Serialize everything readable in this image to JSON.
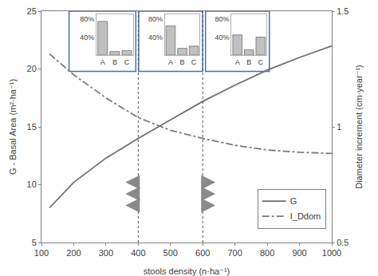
{
  "chart_data": [
    {
      "type": "line",
      "xlabel": "stools density (n·ha⁻¹)",
      "ylabel": "G - Basal Area (m²·ha⁻¹)",
      "y2label": "Diameter increment (cm·year⁻¹)",
      "x": [
        125,
        200,
        300,
        400,
        500,
        600,
        700,
        800,
        900,
        1000
      ],
      "series": [
        {
          "name": "G",
          "color": "#6e6e6e",
          "line_style": "solid",
          "values": [
            8.0,
            10.2,
            12.3,
            14.0,
            15.6,
            17.2,
            18.6,
            19.9,
            21.0,
            22.0
          ]
        },
        {
          "name": "I_Ddom",
          "color": "#7a7a7a",
          "line_style": "dashdot",
          "axis": "y2",
          "values": [
            1.315,
            1.225,
            1.125,
            1.04,
            0.985,
            0.95,
            0.92,
            0.9,
            0.89,
            0.885
          ]
        }
      ],
      "vlines": [
        400,
        600
      ],
      "xlim": [
        100,
        1000
      ],
      "xticks": [
        100,
        200,
        300,
        400,
        500,
        600,
        700,
        800,
        900,
        1000
      ],
      "ylim": [
        5,
        25
      ],
      "yticks": [
        5,
        10,
        15,
        20,
        25
      ],
      "y2lim": [
        0.5,
        1.5
      ],
      "y2ticks": [
        0.5,
        1,
        1.5
      ],
      "grid": false,
      "legend": "lower right"
    },
    {
      "type": "bar",
      "categories": [
        "A",
        "B",
        "C"
      ],
      "values": [
        75,
        8,
        10
      ],
      "color": "#c0c0c0",
      "ylim": [
        0,
        90
      ],
      "yticks": [
        {
          "value": 40,
          "label": "40%"
        },
        {
          "value": 80,
          "label": "80%"
        }
      ]
    },
    {
      "type": "bar",
      "categories": [
        "A",
        "B",
        "C"
      ],
      "values": [
        65,
        15,
        20
      ],
      "color": "#c0c0c0",
      "ylim": [
        0,
        90
      ],
      "yticks": [
        {
          "value": 40,
          "label": "40%"
        },
        {
          "value": 80,
          "label": "80%"
        }
      ]
    },
    {
      "type": "bar",
      "categories": [
        "A",
        "B",
        "C"
      ],
      "values": [
        45,
        12,
        40
      ],
      "color": "#c0c0c0",
      "ylim": [
        0,
        90
      ],
      "yticks": [
        {
          "value": 40,
          "label": "40%"
        },
        {
          "value": 80,
          "label": "80%"
        }
      ]
    }
  ]
}
